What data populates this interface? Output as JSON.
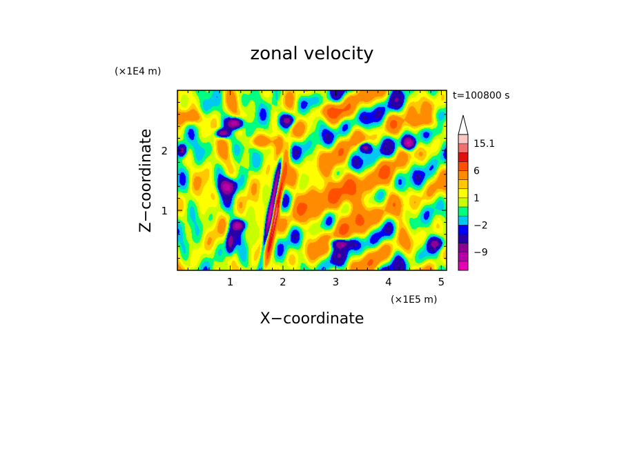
{
  "chart_data": {
    "type": "heatmap",
    "title": "zonal velocity",
    "xlabel": "X−coordinate",
    "ylabel": "Z−coordinate",
    "x_unit": "(×1E5 m)",
    "y_unit": "(×1E4 m)",
    "time_label": "t=100800 s",
    "x_ticks": [
      "1",
      "2",
      "3",
      "4",
      "5"
    ],
    "y_ticks": [
      "1",
      "2"
    ],
    "xlim": [
      0,
      5.1
    ],
    "ylim": [
      0,
      3.0
    ],
    "colorbar": {
      "labels": [
        "15.1",
        "6",
        "1",
        "−2",
        "−9"
      ],
      "label_values": [
        15.1,
        6,
        1,
        -2,
        -9
      ],
      "levels": [
        -15,
        -12,
        -9,
        -6,
        -3,
        -2,
        -1,
        0,
        1,
        2,
        3,
        6,
        9,
        12,
        15.1
      ],
      "colors": [
        "#e400b4",
        "#b400a4",
        "#8c0094",
        "#2800a8",
        "#0000ff",
        "#00c8f0",
        "#00ff80",
        "#c8ff00",
        "#ffff00",
        "#ffc800",
        "#ff8c00",
        "#ff5000",
        "#e01010",
        "#f07070",
        "#f8c8c8"
      ],
      "extend": "max"
    },
    "features": [
      {
        "x": 1.9,
        "z": 1.0,
        "u": 13,
        "kind": "tilted band"
      },
      {
        "x": 1.8,
        "z": 1.05,
        "u": -13,
        "kind": "tilted band"
      },
      {
        "x": 3.1,
        "z": 1.2,
        "u": 4,
        "kind": "blob"
      },
      {
        "x": 4.4,
        "z": 2.1,
        "u": -13,
        "kind": "blob"
      }
    ]
  }
}
